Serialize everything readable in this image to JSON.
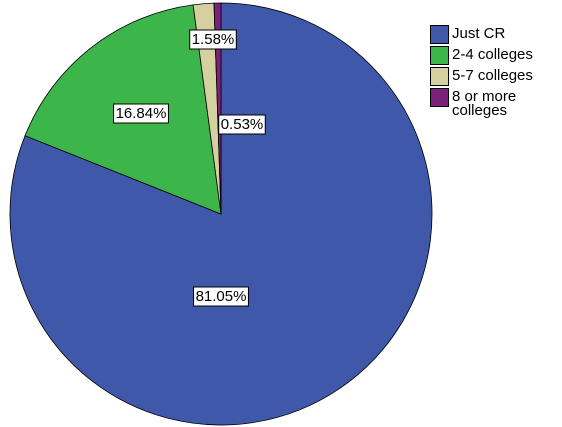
{
  "chart_data": {
    "type": "pie",
    "title": "",
    "slices": [
      {
        "name": "Just CR",
        "value": 81.05,
        "label": "81.05%",
        "color": "#3f58aa"
      },
      {
        "name": "2-4 colleges",
        "value": 16.84,
        "label": "16.84%",
        "color": "#3cb64a"
      },
      {
        "name": "5-7 colleges",
        "value": 1.58,
        "label": "1.58%",
        "color": "#d4d0a0"
      },
      {
        "name": "8 or more colleges",
        "value": 0.53,
        "label": "0.53%",
        "color": "#7a2179"
      }
    ],
    "legend_position": "top-right"
  },
  "legend": {
    "items": [
      {
        "label": "Just CR",
        "color": "#3f58aa"
      },
      {
        "label": "2-4 colleges",
        "color": "#3cb64a"
      },
      {
        "label": "5-7 colleges",
        "color": "#d4d0a0"
      },
      {
        "label": "8 or more\ncolleges",
        "color": "#7a2179"
      }
    ]
  }
}
